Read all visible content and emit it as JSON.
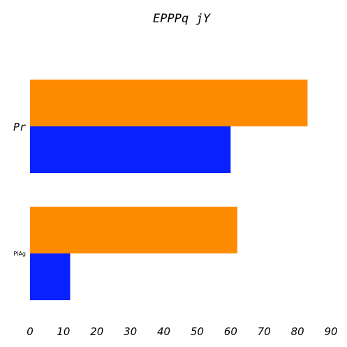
{
  "chart_data": {
    "type": "bar",
    "orientation": "horizontal",
    "title": "EPPPq jY",
    "xlabel": "",
    "ylabel": "",
    "categories": [
      "Pr",
      "PlAg"
    ],
    "series": [
      {
        "values": [
          83,
          62
        ],
        "color": "#ff8c00"
      },
      {
        "values": [
          60,
          12
        ],
        "color": "#0a21ff"
      }
    ],
    "xlim": [
      0,
      90
    ],
    "xticks": [
      "0",
      "10",
      "20",
      "30",
      "40",
      "50",
      "60",
      "70",
      "80",
      "90"
    ],
    "grid": false,
    "legend": false
  }
}
